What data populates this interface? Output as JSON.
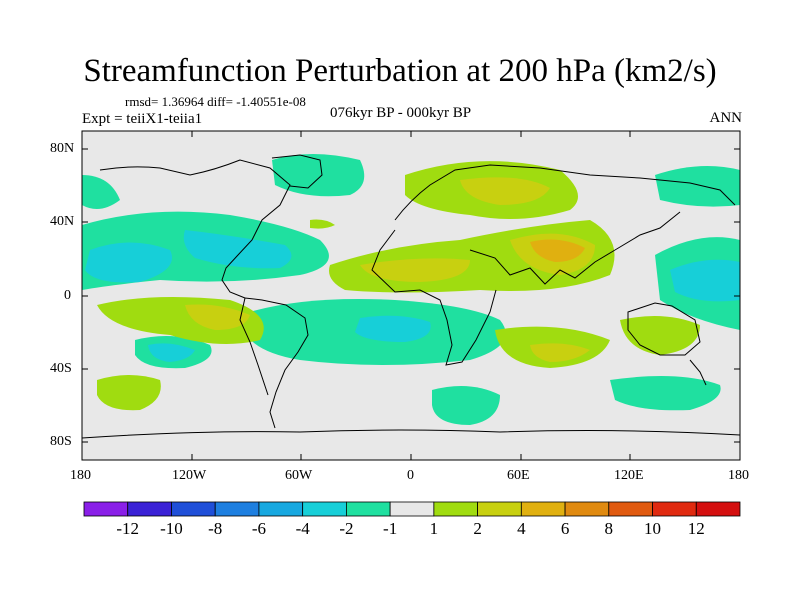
{
  "title": "Streamfunction Perturbation at 200 hPa (km2/s)",
  "stats": "rmsd= 1.36964 diff= -1.40551e-08",
  "experiment": "Expt = teiiX1-teiia1",
  "period": "076kyr BP - 000kyr BP",
  "season": "ANN",
  "axes": {
    "lat_labels": [
      "80N",
      "40N",
      "0",
      "40S",
      "80S"
    ],
    "lon_labels": [
      "180",
      "120W",
      "60W",
      "0",
      "60E",
      "120E",
      "180"
    ],
    "lat_range": [
      -90,
      90
    ],
    "lon_range": [
      -180,
      180
    ]
  },
  "colorbar": {
    "labels": [
      "-12",
      "-10",
      "-8",
      "-6",
      "-4",
      "-2",
      "-1",
      "1",
      "2",
      "4",
      "6",
      "8",
      "10",
      "12"
    ],
    "colors": [
      "#8a1fe8",
      "#3b22d6",
      "#1f4fd8",
      "#1e7fe0",
      "#17a8e0",
      "#17cfd8",
      "#1fe0a0",
      "#e8e8e8",
      "#a0dc10",
      "#c8d010",
      "#e0b010",
      "#e08a10",
      "#e05a10",
      "#e02a10",
      "#d40f0f"
    ]
  },
  "colors": {
    "land_bg": "#e8e8e8",
    "coast": "#000000"
  }
}
